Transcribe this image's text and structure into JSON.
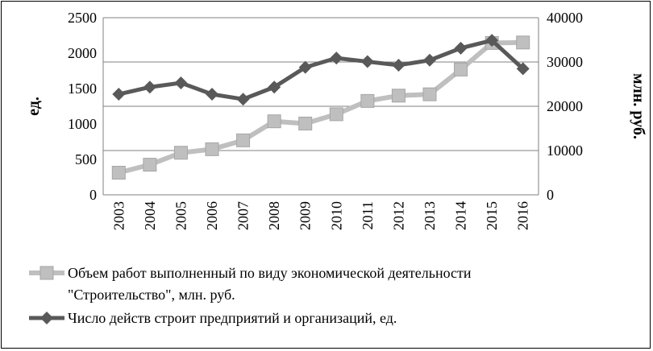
{
  "chart_data": {
    "type": "line",
    "categories": [
      "2003",
      "2004",
      "2005",
      "2006",
      "2007",
      "2008",
      "2009",
      "2010",
      "2011",
      "2012",
      "2013",
      "2014",
      "2015",
      "2016"
    ],
    "y_left": {
      "label": "ед.",
      "range": [
        0,
        2500
      ],
      "ticks": [
        "0",
        "500",
        "1000",
        "1500",
        "2000",
        "2500"
      ]
    },
    "y_right": {
      "label": "млн. руб.",
      "range": [
        0,
        40000
      ],
      "ticks": [
        "0",
        "10000",
        "20000",
        "30000",
        "40000"
      ]
    },
    "series": [
      {
        "name": "Объем работ выполненный по виду экономической деятельности \"Строительство\", млн. руб.",
        "axis": "right",
        "color": "#bfbfbf",
        "marker": "square",
        "values": [
          5000,
          6800,
          9500,
          10300,
          12300,
          16600,
          16100,
          18200,
          21200,
          22400,
          22700,
          28300,
          34300,
          34400
        ]
      },
      {
        "name": "Число действ строит предприятий и организаций, ед.",
        "axis": "left",
        "color": "#595959",
        "marker": "diamond",
        "values": [
          1420,
          1520,
          1580,
          1420,
          1350,
          1520,
          1800,
          1930,
          1880,
          1830,
          1900,
          2070,
          2180,
          1780
        ]
      }
    ],
    "legend_position": "bottom",
    "grid": true
  }
}
